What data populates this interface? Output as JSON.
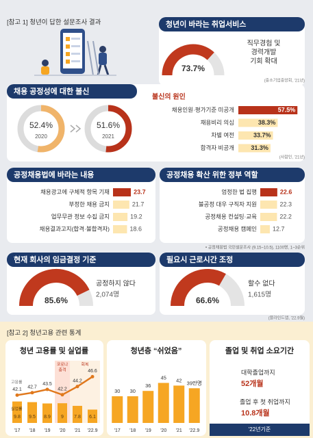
{
  "header1": "[참고 1] 청년이 답한 설문조사 결과",
  "service": {
    "type": "gauge",
    "title": "청년이 바라는 취업서비스",
    "value": 73.7,
    "value_label": "73.7%",
    "color": "#c0391e",
    "label_lines": [
      "직무경험 및",
      "경력개발",
      "기회 확대"
    ],
    "source": "(중소기업중앙회, '21년)"
  },
  "distrust": {
    "title": "채용 공정성에 대한 불신",
    "donuts": {
      "type": "donut",
      "categories": [
        "2020",
        "2021"
      ],
      "values": [
        52.4,
        51.6
      ],
      "value_labels": [
        "52.4%",
        "51.6%"
      ],
      "colors": [
        "#f0b46a",
        "#b8321a"
      ]
    },
    "causes": {
      "type": "hbar",
      "title": "불신의 원인",
      "categories": [
        "채용인원·평가기준 미공개",
        "채용비리 의심",
        "차별 여전",
        "합격자 비공개"
      ],
      "values": [
        57.5,
        38.3,
        33.7,
        31.3
      ],
      "value_labels": [
        "57.5%",
        "38.3%",
        "33.7%",
        "31.3%"
      ],
      "colors": [
        "#b8321a",
        "#fde6b0",
        "#fde6b0",
        "#fde6b0"
      ]
    },
    "source": "(사람인, '21년)"
  },
  "law": {
    "type": "hbar",
    "title": "공정채용법에 바라는 내용",
    "categories": [
      "채용광고에 구체적 항목 기재",
      "부정한 채용 금지",
      "업무무관 정보 수집 금지",
      "채용결과고지(합격·불합격자)"
    ],
    "values": [
      23.7,
      21.7,
      19.2,
      18.6
    ],
    "colors": [
      "#b8321a",
      "#fde6b0",
      "#fde6b0",
      "#fde6b0"
    ]
  },
  "gov": {
    "type": "hbar",
    "title": "공정채용 확산 위한 정부 역할",
    "categories": [
      "엄정한 법 집행",
      "불공정 대우 구직자 지원",
      "공정채용 컨설팅·교육",
      "공정채용 캠페인"
    ],
    "values": [
      22.6,
      22.3,
      22.2,
      12.7
    ],
    "colors": [
      "#b8321a",
      "#fde6b0",
      "#fde6b0",
      "#fde6b0"
    ]
  },
  "survey_note": "• 공정채용법 국민설문조사 (9.15~10.5), 1100명, 1~3순위",
  "wage": {
    "type": "gauge",
    "title": "현재 회사의 임금결정 기준",
    "value": 85.6,
    "value_label": "85.6%",
    "color": "#c0391e",
    "label": "공정하지 않다",
    "count": 2074,
    "count_label": "2,074명"
  },
  "hours": {
    "type": "gauge",
    "title": "필요시 근로시간 조정",
    "value": 66.6,
    "value_label": "66.6%",
    "color": "#c0391e",
    "label": "할수 없다",
    "count": 1615,
    "count_label": "1,615명",
    "source": "(블라인드앱, '22.9월)"
  },
  "header2": "[참고 2] 청년고용 관련 통계",
  "employment": {
    "type": "bar_line",
    "title": "청년 고용률 및 실업률",
    "categories": [
      "'17",
      "'18",
      "'19",
      "'20",
      "'21",
      "'22.9"
    ],
    "series": [
      {
        "name": "고용률",
        "type": "line",
        "color": "#e0781c",
        "values": [
          42.1,
          42.7,
          43.5,
          42.2,
          44.2,
          46.6
        ]
      },
      {
        "name": "실업률",
        "type": "bar",
        "color": "#f6a623",
        "values": [
          9.8,
          9.5,
          8.9,
          9.0,
          7.8,
          6.1
        ]
      }
    ],
    "annotations": [
      "코로나",
      "충격",
      "회복"
    ]
  },
  "rest": {
    "type": "bar",
    "title": "청년층 “쉬었음”",
    "categories": [
      "'17",
      "'18",
      "'19",
      "'20",
      "'21",
      "'22.9"
    ],
    "color": "#f6a623",
    "values": [
      30,
      30,
      36,
      45,
      42,
      39
    ],
    "value_labels": [
      "30",
      "30",
      "36",
      "45",
      "42",
      "39만명"
    ]
  },
  "duration": {
    "title": "졸업 및 취업 소요기간",
    "items": [
      {
        "label": "대학졸업까지",
        "value": 52,
        "value_label": "52개월"
      },
      {
        "label": "졸업 후 첫 취업까지",
        "value": 10.8,
        "value_label": "10.8개월"
      }
    ],
    "footer": "'22년기준"
  }
}
